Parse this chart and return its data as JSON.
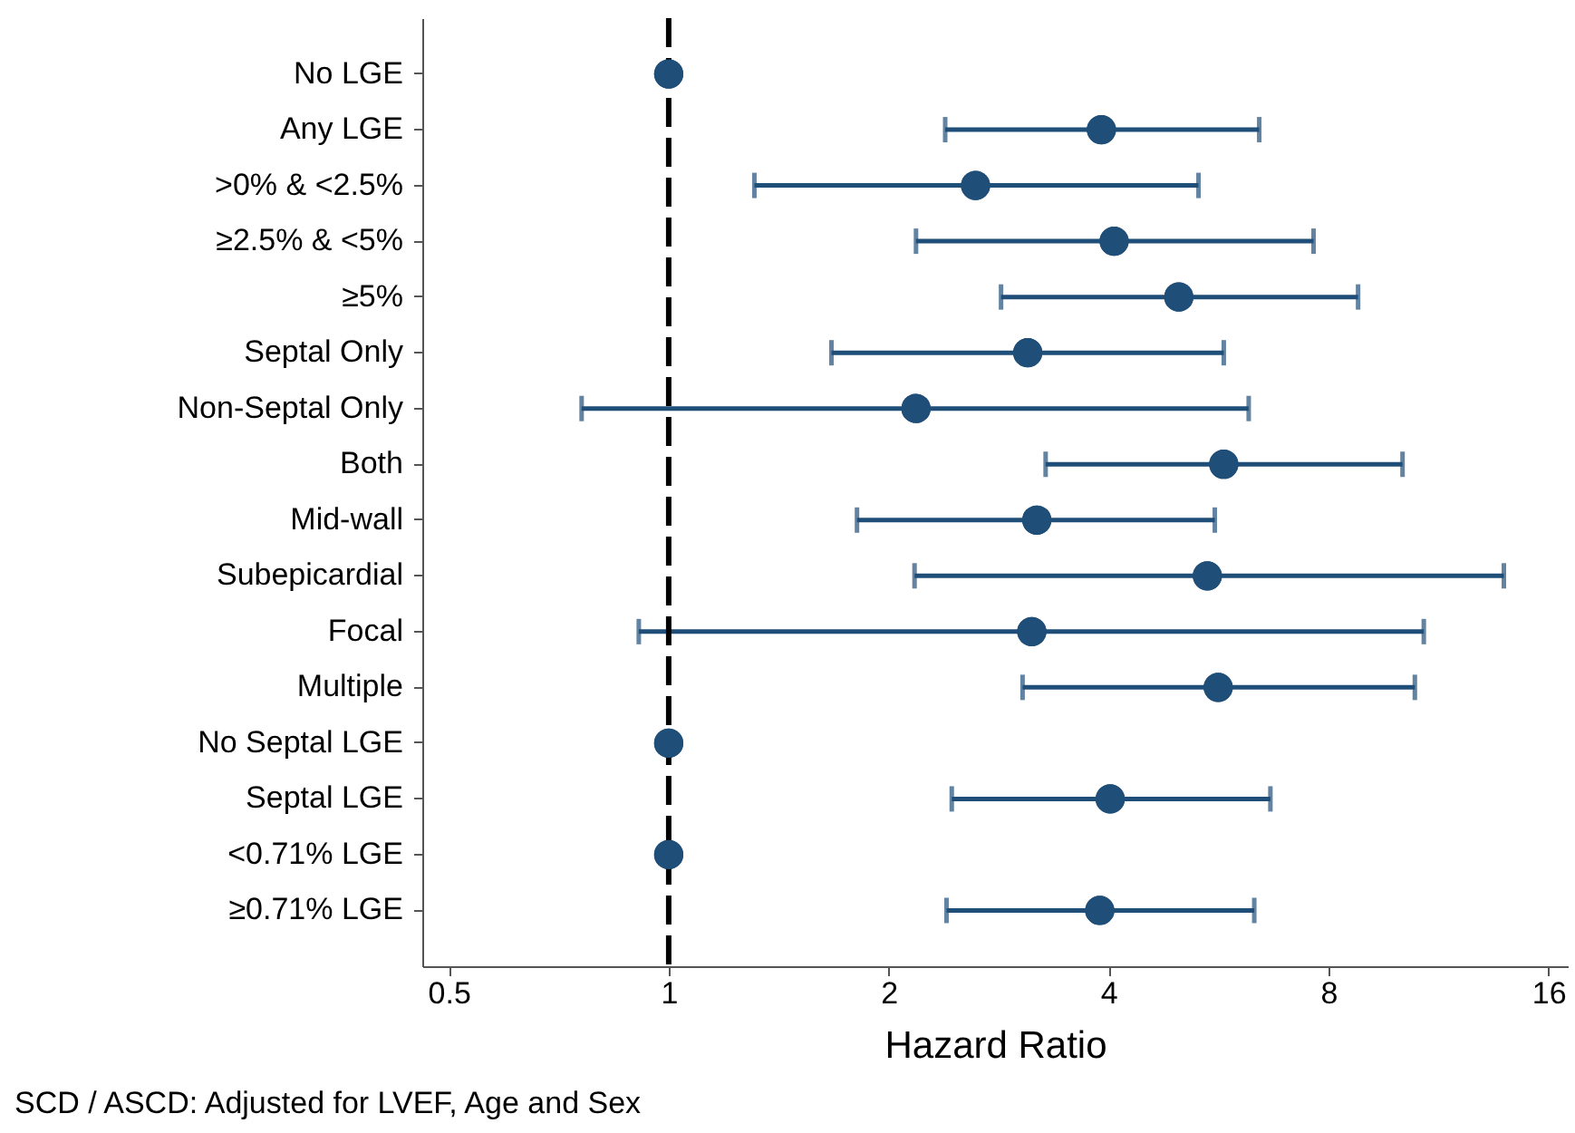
{
  "chart_data": {
    "type": "scatter",
    "orientation": "horizontal",
    "xlabel": "Hazard Ratio",
    "log": "x",
    "categories": [
      "No LGE",
      "Any LGE",
      ">0% & <2.5%",
      "≥2.5% & <5%",
      "≥5%",
      "Septal Only",
      "Non-Septal Only",
      "Both",
      "Mid-wall",
      "Subepicardial",
      "Focal",
      "Multiple",
      "No Septal LGE",
      "Septal LGE",
      "<0.71% LGE",
      "≥0.71% LGE"
    ],
    "series": [
      {
        "color": "#1f4e79",
        "values": [
          1,
          3.91,
          2.63,
          4.07,
          4.99,
          3.1,
          2.18,
          5.75,
          3.19,
          5.46,
          3.14,
          5.65,
          1,
          4.02,
          1,
          3.89
        ],
        "errors": [
          null,
          [
            2.39,
            6.43
          ],
          [
            1.31,
            5.31
          ],
          [
            2.18,
            7.63
          ],
          [
            2.85,
            8.78
          ],
          [
            1.67,
            5.75
          ],
          [
            0.76,
            6.22
          ],
          [
            3.28,
            10.1
          ],
          [
            1.81,
            5.59
          ],
          [
            2.17,
            13.9
          ],
          [
            0.91,
            10.8
          ],
          [
            3.05,
            10.5
          ],
          null,
          [
            2.44,
            6.66
          ],
          null,
          [
            2.4,
            6.33
          ]
        ]
      }
    ],
    "xlim": [
      0.46,
      17
    ],
    "xticks": [
      0.5,
      1,
      2,
      4,
      8,
      16
    ],
    "ref_lines": [
      {
        "axis": "x",
        "value": 1,
        "color": "#000000",
        "line_style": "dashed"
      }
    ],
    "marker": "circle",
    "grid": false,
    "legend": false,
    "annotations": [
      "SCD / ASCD: Adjusted for LVEF, Age and Sex"
    ]
  }
}
